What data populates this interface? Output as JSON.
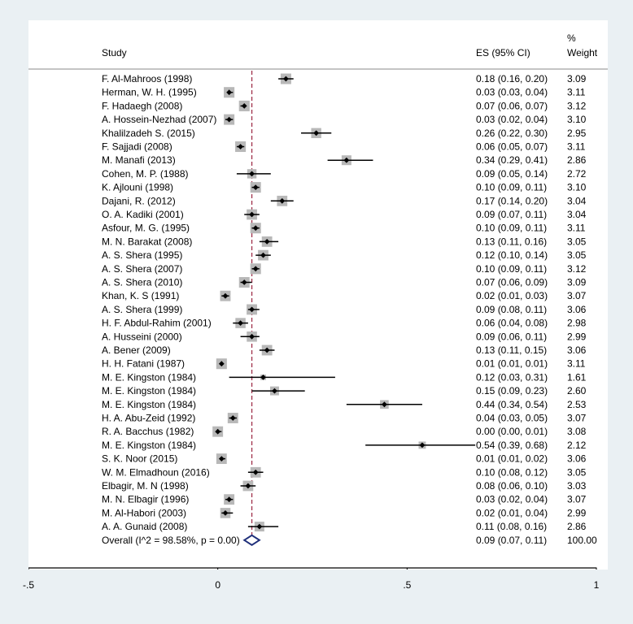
{
  "chart_data": {
    "type": "forest",
    "header": {
      "study": "Study",
      "es": "ES (95% CI)",
      "weight_line1": "%",
      "weight_line2": "Weight"
    },
    "reference_line": 0.09,
    "xlim": [
      -0.5,
      1
    ],
    "xticks": [
      -0.5,
      0,
      0.5,
      1
    ],
    "xtick_labels": [
      "-.5",
      "0",
      ".5",
      "1"
    ],
    "studies": [
      {
        "label": "F. Al-Mahroos (1998)",
        "es": 0.18,
        "lo": 0.16,
        "hi": 0.2,
        "ci": "0.18 (0.16, 0.20)",
        "weight": "3.09"
      },
      {
        "label": "Herman, W. H. (1995)",
        "es": 0.03,
        "lo": 0.03,
        "hi": 0.04,
        "ci": "0.03 (0.03, 0.04)",
        "weight": "3.11"
      },
      {
        "label": "F. Hadaegh (2008)",
        "es": 0.07,
        "lo": 0.06,
        "hi": 0.07,
        "ci": "0.07 (0.06, 0.07)",
        "weight": "3.12"
      },
      {
        "label": "A. Hossein-Nezhad (2007)",
        "es": 0.03,
        "lo": 0.02,
        "hi": 0.04,
        "ci": "0.03 (0.02, 0.04)",
        "weight": "3.10"
      },
      {
        "label": "Khalilzadeh S. (2015)",
        "es": 0.26,
        "lo": 0.22,
        "hi": 0.3,
        "ci": "0.26 (0.22, 0.30)",
        "weight": "2.95"
      },
      {
        "label": "F. Sajjadi (2008)",
        "es": 0.06,
        "lo": 0.05,
        "hi": 0.07,
        "ci": "0.06 (0.05, 0.07)",
        "weight": "3.11"
      },
      {
        "label": "M. Manafi (2013)",
        "es": 0.34,
        "lo": 0.29,
        "hi": 0.41,
        "ci": "0.34 (0.29, 0.41)",
        "weight": "2.86"
      },
      {
        "label": "Cohen, M. P. (1988)",
        "es": 0.09,
        "lo": 0.05,
        "hi": 0.14,
        "ci": "0.09 (0.05, 0.14)",
        "weight": "2.72"
      },
      {
        "label": "K. Ajlouni (1998)",
        "es": 0.1,
        "lo": 0.09,
        "hi": 0.11,
        "ci": "0.10 (0.09, 0.11)",
        "weight": "3.10"
      },
      {
        "label": "Dajani, R. (2012)",
        "es": 0.17,
        "lo": 0.14,
        "hi": 0.2,
        "ci": "0.17 (0.14, 0.20)",
        "weight": "3.04"
      },
      {
        "label": "O. A. Kadiki (2001)",
        "es": 0.09,
        "lo": 0.07,
        "hi": 0.11,
        "ci": "0.09 (0.07, 0.11)",
        "weight": "3.04"
      },
      {
        "label": "Asfour, M. G. (1995)",
        "es": 0.1,
        "lo": 0.09,
        "hi": 0.11,
        "ci": "0.10 (0.09, 0.11)",
        "weight": "3.11"
      },
      {
        "label": "M. N. Barakat (2008)",
        "es": 0.13,
        "lo": 0.11,
        "hi": 0.16,
        "ci": "0.13 (0.11, 0.16)",
        "weight": "3.05"
      },
      {
        "label": "A. S. Shera (1995)",
        "es": 0.12,
        "lo": 0.1,
        "hi": 0.14,
        "ci": "0.12 (0.10, 0.14)",
        "weight": "3.05"
      },
      {
        "label": "A. S. Shera (2007)",
        "es": 0.1,
        "lo": 0.09,
        "hi": 0.11,
        "ci": "0.10 (0.09, 0.11)",
        "weight": "3.12"
      },
      {
        "label": "A. S. Shera (2010)",
        "es": 0.07,
        "lo": 0.06,
        "hi": 0.09,
        "ci": "0.07 (0.06, 0.09)",
        "weight": "3.09"
      },
      {
        "label": "Khan, K. S (1991)",
        "es": 0.02,
        "lo": 0.01,
        "hi": 0.03,
        "ci": "0.02 (0.01, 0.03)",
        "weight": "3.07"
      },
      {
        "label": "A. S. Shera (1999)",
        "es": 0.09,
        "lo": 0.08,
        "hi": 0.11,
        "ci": "0.09 (0.08, 0.11)",
        "weight": "3.06"
      },
      {
        "label": "H. F. Abdul-Rahim (2001)",
        "es": 0.06,
        "lo": 0.04,
        "hi": 0.08,
        "ci": "0.06 (0.04, 0.08)",
        "weight": "2.98"
      },
      {
        "label": "A. Husseini (2000)",
        "es": 0.09,
        "lo": 0.06,
        "hi": 0.11,
        "ci": "0.09 (0.06, 0.11)",
        "weight": "2.99"
      },
      {
        "label": "A. Bener (2009)",
        "es": 0.13,
        "lo": 0.11,
        "hi": 0.15,
        "ci": "0.13 (0.11, 0.15)",
        "weight": "3.06"
      },
      {
        "label": "H. H. Fatani (1987)",
        "es": 0.01,
        "lo": 0.01,
        "hi": 0.01,
        "ci": "0.01 (0.01, 0.01)",
        "weight": "3.11"
      },
      {
        "label": "M. E. Kingston (1984)",
        "es": 0.12,
        "lo": 0.03,
        "hi": 0.31,
        "ci": "0.12 (0.03, 0.31)",
        "weight": "1.61"
      },
      {
        "label": "M. E. Kingston (1984)",
        "es": 0.15,
        "lo": 0.09,
        "hi": 0.23,
        "ci": "0.15 (0.09, 0.23)",
        "weight": "2.60"
      },
      {
        "label": "M. E. Kingston (1984)",
        "es": 0.44,
        "lo": 0.34,
        "hi": 0.54,
        "ci": "0.44 (0.34, 0.54)",
        "weight": "2.53"
      },
      {
        "label": "H. A. Abu-Zeid (1992)",
        "es": 0.04,
        "lo": 0.03,
        "hi": 0.05,
        "ci": "0.04 (0.03, 0.05)",
        "weight": "3.07"
      },
      {
        "label": "R. A. Bacchus (1982)",
        "es": 0.0,
        "lo": 0.0,
        "hi": 0.01,
        "ci": "0.00 (0.00, 0.01)",
        "weight": "3.08"
      },
      {
        "label": "M. E. Kingston (1984)",
        "es": 0.54,
        "lo": 0.39,
        "hi": 0.68,
        "ci": "0.54 (0.39, 0.68)",
        "weight": "2.12"
      },
      {
        "label": "S. K. Noor (2015)",
        "es": 0.01,
        "lo": 0.01,
        "hi": 0.02,
        "ci": "0.01 (0.01, 0.02)",
        "weight": "3.06"
      },
      {
        "label": "W. M. Elmadhoun (2016)",
        "es": 0.1,
        "lo": 0.08,
        "hi": 0.12,
        "ci": "0.10 (0.08, 0.12)",
        "weight": "3.05"
      },
      {
        "label": "Elbagir, M. N (1998)",
        "es": 0.08,
        "lo": 0.06,
        "hi": 0.1,
        "ci": "0.08 (0.06, 0.10)",
        "weight": "3.03"
      },
      {
        "label": "M. N. Elbagir (1996)",
        "es": 0.03,
        "lo": 0.02,
        "hi": 0.04,
        "ci": "0.03 (0.02, 0.04)",
        "weight": "3.07"
      },
      {
        "label": "M. Al-Habori (2003)",
        "es": 0.02,
        "lo": 0.01,
        "hi": 0.04,
        "ci": "0.02 (0.01, 0.04)",
        "weight": "2.99"
      },
      {
        "label": "A. A. Gunaid (2008)",
        "es": 0.11,
        "lo": 0.08,
        "hi": 0.16,
        "ci": "0.11 (0.08, 0.16)",
        "weight": "2.86"
      }
    ],
    "overall": {
      "label": "Overall  (I^2 = 98.58%, p = 0.00)",
      "es": 0.09,
      "lo": 0.07,
      "hi": 0.11,
      "ci": "0.09 (0.07, 0.11)",
      "weight": "100.00"
    },
    "colors": {
      "background": "#eaf0f3",
      "panel": "#ffffff",
      "box": "#b8b8b8",
      "marker": "#000000",
      "ref_line": "#a0304a",
      "diamond": "#1f2f7a",
      "text": "#000000"
    }
  }
}
